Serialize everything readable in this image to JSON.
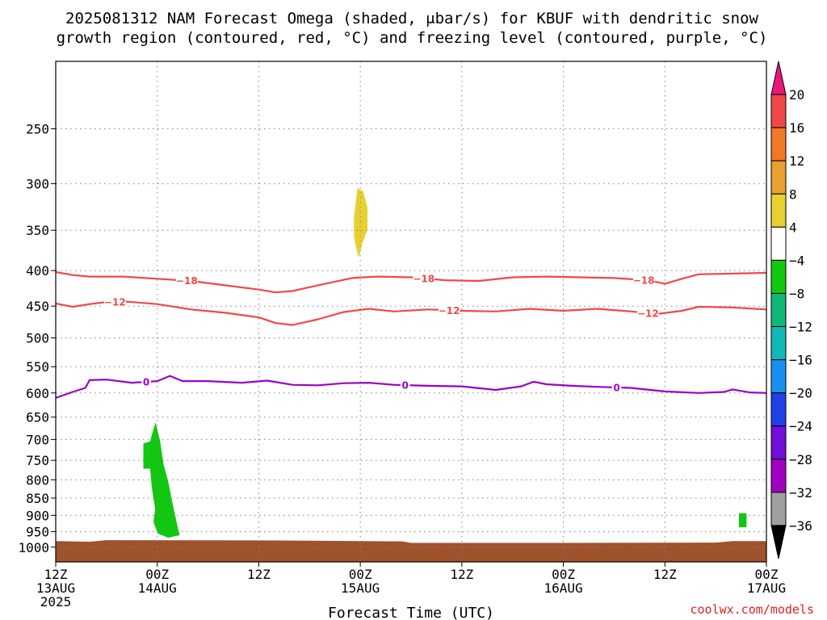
{
  "title_line1": "2025081312 NAM Forecast Omega (shaded, μbar/s) for KBUF with dendritic snow",
  "title_line2": "growth region (contoured, red, °C) and freezing level (contoured, purple, °C)",
  "credit": "coolwx.com/models",
  "colors": {
    "dgz": "#f04848",
    "freezing": "#9a00c8",
    "terrain": "#a0522d",
    "grid": "#808080",
    "credit": "#e02020"
  },
  "chart_data": {
    "type": "heatmap",
    "title": "2025081312 NAM Forecast Omega (shaded, μbar/s) for KBUF with dendritic snow growth region (contoured, red, °C) and freezing level (contoured, purple, °C)",
    "xlabel": "Forecast Time (UTC)",
    "ylabel": "",
    "y_scale": "log-pressure",
    "y_unit": "hPa",
    "xlim_hours": [
      0,
      84
    ],
    "ylim": [
      1050,
      200
    ],
    "x_ticks": [
      {
        "hour": 0,
        "line1": "12Z",
        "line2": "13AUG",
        "line3": "2025"
      },
      {
        "hour": 12,
        "line1": "00Z",
        "line2": "14AUG",
        "line3": ""
      },
      {
        "hour": 24,
        "line1": "12Z",
        "line2": "",
        "line3": ""
      },
      {
        "hour": 36,
        "line1": "00Z",
        "line2": "15AUG",
        "line3": ""
      },
      {
        "hour": 48,
        "line1": "12Z",
        "line2": "",
        "line3": ""
      },
      {
        "hour": 60,
        "line1": "00Z",
        "line2": "16AUG",
        "line3": ""
      },
      {
        "hour": 72,
        "line1": "12Z",
        "line2": "",
        "line3": ""
      },
      {
        "hour": 84,
        "line1": "00Z",
        "line2": "17AUG",
        "line3": ""
      }
    ],
    "y_ticks": [
      250,
      300,
      350,
      400,
      450,
      500,
      550,
      600,
      650,
      700,
      750,
      800,
      850,
      900,
      950,
      1000
    ],
    "grid": true,
    "colorbar": {
      "labels": [
        "20",
        "16",
        "12",
        "8",
        "4",
        "-4",
        "-8",
        "-12",
        "-16",
        "-20",
        "-24",
        "-28",
        "-32",
        "-36"
      ],
      "colors_top_to_bottom": [
        "#e8187a",
        "#f04848",
        "#f07828",
        "#e8a030",
        "#e8d030",
        "#ffffff",
        "#10c810",
        "#10b878",
        "#10b8b8",
        "#1890f0",
        "#2040e8",
        "#7010d8",
        "#a000c0",
        "#a0a0a0",
        "#000000"
      ]
    },
    "contours": [
      {
        "name": "-18",
        "label": "-18",
        "color": "#f04848",
        "label_hours": [
          15.5,
          43.5,
          69.5
        ],
        "points": [
          [
            0,
            402
          ],
          [
            2,
            406
          ],
          [
            4,
            408
          ],
          [
            8,
            408
          ],
          [
            12,
            411
          ],
          [
            16,
            414
          ],
          [
            20,
            420
          ],
          [
            24,
            426
          ],
          [
            26,
            430
          ],
          [
            28,
            428
          ],
          [
            31,
            420
          ],
          [
            35,
            410
          ],
          [
            38,
            408
          ],
          [
            42,
            409
          ],
          [
            46,
            413
          ],
          [
            50,
            414
          ],
          [
            54,
            409
          ],
          [
            58,
            408
          ],
          [
            62,
            409
          ],
          [
            66,
            410
          ],
          [
            70,
            413
          ],
          [
            72,
            418
          ],
          [
            74,
            411
          ],
          [
            76,
            405
          ],
          [
            80,
            404
          ],
          [
            84,
            403
          ]
        ]
      },
      {
        "name": "-12",
        "label": "-12",
        "color": "#f04848",
        "label_hours": [
          7,
          46.5,
          70
        ],
        "points": [
          [
            0,
            446
          ],
          [
            2,
            451
          ],
          [
            4,
            447
          ],
          [
            6,
            444
          ],
          [
            8,
            443
          ],
          [
            12,
            447
          ],
          [
            16,
            455
          ],
          [
            20,
            460
          ],
          [
            24,
            467
          ],
          [
            26,
            476
          ],
          [
            28,
            479
          ],
          [
            31,
            470
          ],
          [
            34,
            459
          ],
          [
            37,
            454
          ],
          [
            40,
            458
          ],
          [
            44,
            455
          ],
          [
            48,
            457
          ],
          [
            52,
            458
          ],
          [
            56,
            454
          ],
          [
            60,
            457
          ],
          [
            64,
            454
          ],
          [
            68,
            458
          ],
          [
            71,
            462
          ],
          [
            74,
            457
          ],
          [
            76,
            451
          ],
          [
            80,
            452
          ],
          [
            84,
            455
          ]
        ]
      },
      {
        "name": "0",
        "label": "0",
        "color": "#9a00c8",
        "label_hours": [
          10.7,
          41.3,
          66.3
        ],
        "points": [
          [
            0,
            610
          ],
          [
            2,
            598
          ],
          [
            3.5,
            590
          ],
          [
            4,
            575
          ],
          [
            6,
            574
          ],
          [
            9,
            580
          ],
          [
            12,
            577
          ],
          [
            13.5,
            567
          ],
          [
            15,
            577
          ],
          [
            18,
            577
          ],
          [
            22,
            580
          ],
          [
            25,
            576
          ],
          [
            28,
            584
          ],
          [
            31,
            585
          ],
          [
            34,
            581
          ],
          [
            37,
            580
          ],
          [
            40,
            584
          ],
          [
            44,
            586
          ],
          [
            48,
            587
          ],
          [
            52,
            594
          ],
          [
            55,
            587
          ],
          [
            56.5,
            578
          ],
          [
            58,
            583
          ],
          [
            61,
            586
          ],
          [
            64,
            588
          ],
          [
            68,
            590
          ],
          [
            72,
            597
          ],
          [
            76,
            600
          ],
          [
            79,
            598
          ],
          [
            80,
            593
          ],
          [
            82,
            599
          ],
          [
            84,
            600
          ]
        ]
      }
    ],
    "shaded_regions": [
      {
        "name": "omega 4 to 8",
        "color": "#e8d030",
        "points": [
          [
            35.3,
            335
          ],
          [
            35.7,
            305
          ],
          [
            36.3,
            308
          ],
          [
            36.8,
            325
          ],
          [
            36.8,
            350
          ],
          [
            36.2,
            365
          ],
          [
            35.8,
            382
          ],
          [
            35.3,
            358
          ]
        ]
      },
      {
        "name": "omega -4 to -8",
        "color": "#10c810",
        "points": [
          [
            11.8,
            665
          ],
          [
            12.3,
            705
          ],
          [
            12.7,
            760
          ],
          [
            13.3,
            810
          ],
          [
            13.8,
            870
          ],
          [
            14.4,
            940
          ],
          [
            14.6,
            960
          ],
          [
            13.3,
            968
          ],
          [
            12.1,
            955
          ],
          [
            11.6,
            920
          ],
          [
            11.8,
            880
          ],
          [
            11.4,
            820
          ],
          [
            11.2,
            770
          ],
          [
            10.4,
            770
          ],
          [
            10.4,
            710
          ],
          [
            11.2,
            705
          ],
          [
            11.4,
            690
          ]
        ]
      },
      {
        "name": "omega -4 to -8 small",
        "color": "#10c810",
        "points": [
          [
            80.8,
            895
          ],
          [
            81.6,
            895
          ],
          [
            81.6,
            935
          ],
          [
            80.8,
            935
          ]
        ]
      }
    ],
    "terrain": [
      [
        0,
        980
      ],
      [
        4,
        982
      ],
      [
        6,
        977
      ],
      [
        24,
        978
      ],
      [
        36,
        980
      ],
      [
        41,
        981
      ],
      [
        42,
        986
      ],
      [
        60,
        986
      ],
      [
        78,
        985
      ],
      [
        80,
        980
      ],
      [
        84,
        980
      ]
    ]
  }
}
